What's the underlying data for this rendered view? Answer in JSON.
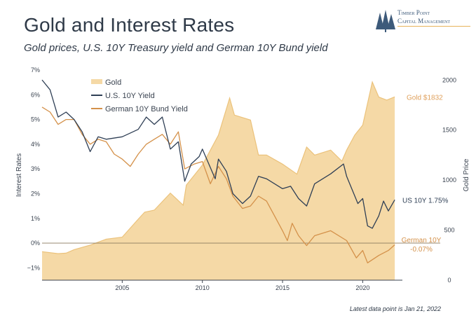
{
  "header": {
    "title": "Gold and Interest Rates",
    "subtitle": "Gold prices, U.S. 10Y Treasury yield and German 10Y Bund yield",
    "logo_line1": "Timber Point",
    "logo_line2": "Capital Management",
    "footnote": "Latest data point is Jan 21, 2022"
  },
  "colors": {
    "gold": "#f5d9a6",
    "gold_line": "#ebc27b",
    "us": "#2f3f55",
    "de": "#d4914a",
    "gold_label": "#e0a15c",
    "de_label": "#d4914a",
    "axis_text": "#3a4350"
  },
  "chart_data": {
    "type": "line",
    "ylabel": "Interest Rates",
    "y2label": "Gold Price",
    "xlim": [
      2000,
      2022.3
    ],
    "ylim": [
      -1.5,
      7
    ],
    "y2lim": [
      0,
      2100
    ],
    "xticks": [
      2005,
      2010,
      2015,
      2020
    ],
    "yticks": [
      "−1%",
      "0%",
      "1%",
      "2%",
      "3%",
      "4%",
      "5%",
      "6%",
      "7%"
    ],
    "yticks_vals": [
      -1,
      0,
      1,
      2,
      3,
      4,
      5,
      6,
      7
    ],
    "y2ticks": [
      0,
      500,
      1000,
      1500,
      2000
    ],
    "legend": [
      "Gold",
      "U.S. 10Y Yield",
      "German 10Y Bund Yield"
    ],
    "annotations": {
      "gold": "Gold $1832",
      "us": "US 10Y 1.75%",
      "de_line1": "German 10Y",
      "de_line2": "-0.07%"
    },
    "series": [
      {
        "name": "Gold",
        "axis": "right",
        "x": [
          2000,
          2001,
          2001.5,
          2002,
          2003,
          2004,
          2005,
          2006,
          2006.4,
          2007,
          2008,
          2008.8,
          2009,
          2010,
          2011,
          2011.7,
          2012,
          2013,
          2013.5,
          2014,
          2015,
          2015.9,
          2016.5,
          2017,
          2018,
          2018.7,
          2019,
          2019.5,
          2020,
          2020.6,
          2021,
          2021.5,
          2022
        ],
        "y": [
          285,
          265,
          270,
          305,
          350,
          410,
          430,
          610,
          680,
          700,
          870,
          750,
          950,
          1150,
          1450,
          1820,
          1650,
          1600,
          1250,
          1250,
          1160,
          1060,
          1330,
          1250,
          1300,
          1190,
          1300,
          1450,
          1550,
          1980,
          1830,
          1800,
          1832
        ]
      },
      {
        "name": "U.S. 10Y Yield",
        "axis": "left",
        "x": [
          2000,
          2000.5,
          2001,
          2001.5,
          2002,
          2002.5,
          2003,
          2003.5,
          2004,
          2005,
          2006,
          2006.5,
          2007,
          2007.5,
          2008,
          2008.5,
          2008.9,
          2009.3,
          2009.8,
          2010,
          2010.8,
          2011,
          2011.5,
          2011.9,
          2012.5,
          2013,
          2013.5,
          2014,
          2015,
          2015.5,
          2016,
          2016.5,
          2017,
          2018,
          2018.8,
          2019,
          2019.7,
          2020,
          2020.3,
          2020.6,
          2021,
          2021.3,
          2021.6,
          2022
        ],
        "y": [
          6.6,
          6.2,
          5.1,
          5.3,
          5.0,
          4.5,
          3.7,
          4.3,
          4.2,
          4.3,
          4.6,
          5.1,
          4.8,
          5.1,
          3.8,
          4.1,
          2.5,
          3.2,
          3.5,
          3.8,
          2.6,
          3.4,
          2.9,
          2.0,
          1.6,
          1.9,
          2.7,
          2.6,
          2.2,
          2.3,
          1.8,
          1.5,
          2.4,
          2.8,
          3.2,
          2.7,
          1.6,
          1.8,
          0.7,
          0.6,
          1.1,
          1.7,
          1.3,
          1.75
        ]
      },
      {
        "name": "German 10Y Bund Yield",
        "axis": "left",
        "x": [
          2000,
          2000.5,
          2001,
          2001.5,
          2002,
          2002.5,
          2003,
          2003.5,
          2004,
          2004.5,
          2005,
          2005.5,
          2006,
          2006.5,
          2007,
          2007.5,
          2008,
          2008.5,
          2008.9,
          2009.5,
          2010,
          2010.5,
          2011,
          2011.5,
          2011.9,
          2012.5,
          2013,
          2013.5,
          2014,
          2014.5,
          2015,
          2015.3,
          2015.6,
          2016,
          2016.5,
          2017,
          2018,
          2019,
          2019.6,
          2020,
          2020.3,
          2021,
          2021.6,
          2022
        ],
        "y": [
          5.5,
          5.3,
          4.8,
          5.0,
          5.0,
          4.4,
          4.0,
          4.2,
          4.1,
          3.6,
          3.4,
          3.1,
          3.6,
          4.0,
          4.2,
          4.4,
          4.0,
          4.5,
          3.0,
          3.2,
          3.3,
          2.4,
          3.1,
          2.6,
          1.9,
          1.4,
          1.5,
          1.9,
          1.7,
          1.1,
          0.5,
          0.1,
          0.8,
          0.3,
          -0.1,
          0.3,
          0.5,
          0.1,
          -0.6,
          -0.3,
          -0.8,
          -0.5,
          -0.3,
          -0.07
        ]
      }
    ]
  }
}
